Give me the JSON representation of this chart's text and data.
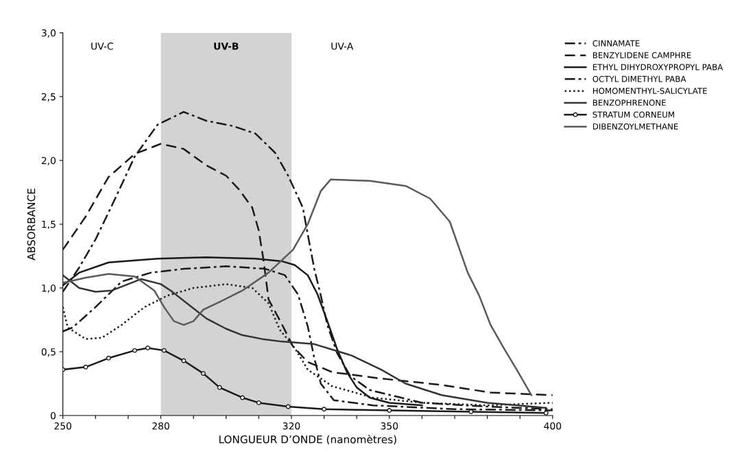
{
  "chart_data": {
    "type": "line",
    "xlabel": "LONGUEUR D’ONDE (nanomètres)",
    "ylabel": "ABSORBANCE",
    "xlim": [
      250,
      400
    ],
    "ylim": [
      0,
      3.0
    ],
    "xticks": [
      250,
      {
        "value": 260,
        "label": null
      },
      {
        "value": 270,
        "label": null
      },
      280,
      {
        "value": 290,
        "label": null
      },
      {
        "value": 300,
        "label": null
      },
      {
        "value": 310,
        "label": null
      },
      320,
      {
        "value": 330,
        "label": null
      },
      {
        "value": 340,
        "label": null
      },
      350,
      {
        "value": 360,
        "label": null
      },
      {
        "value": 370,
        "label": null
      },
      {
        "value": 380,
        "label": null
      },
      {
        "value": 390,
        "label": null
      },
      400
    ],
    "yticks": [
      {
        "value": 0,
        "label": "0"
      },
      {
        "value": 0.5,
        "label": "0,5"
      },
      {
        "value": 1.0,
        "label": "1,0"
      },
      {
        "value": 1.5,
        "label": "1,5"
      },
      {
        "value": 2.0,
        "label": "2,0"
      },
      {
        "value": 2.5,
        "label": "2,5"
      },
      {
        "value": 3.0,
        "label": "3,0"
      }
    ],
    "grid": false,
    "legend": "top right",
    "bands": [
      {
        "axis": "x",
        "from": 280,
        "to": 320,
        "label": "UV-B",
        "color": "#c8c8c8"
      }
    ],
    "annotations": [
      "UV-C",
      "UV-A"
    ],
    "series": [
      {
        "name": "CINNAMATE",
        "color": "#1a1a1a",
        "line_style": "dashdot",
        "x": [
          250,
          255,
          260,
          266,
          272,
          279,
          287,
          294,
          302,
          309,
          315,
          319,
          323.5,
          325,
          327,
          329,
          331,
          334,
          338,
          344,
          360,
          380,
          400
        ],
        "values": [
          0.97,
          1.16,
          1.38,
          1.7,
          2.03,
          2.28,
          2.38,
          2.31,
          2.27,
          2.21,
          2.06,
          1.88,
          1.63,
          1.42,
          1.15,
          0.94,
          0.71,
          0.49,
          0.31,
          0.2,
          0.1,
          0.07,
          0.05
        ]
      },
      {
        "name": "BENZYLIDENE CAMPHRE",
        "color": "#1a1a1a",
        "line_style": "dashed",
        "x": [
          250,
          257,
          264,
          272,
          280,
          287,
          294,
          300,
          304,
          308,
          310,
          311.5,
          313,
          317,
          320.5,
          325,
          332.5,
          347.5,
          366,
          381,
          400
        ],
        "values": [
          1.3,
          1.56,
          1.87,
          2.05,
          2.13,
          2.09,
          1.96,
          1.88,
          1.77,
          1.63,
          1.45,
          1.21,
          0.91,
          0.72,
          0.54,
          0.42,
          0.34,
          0.29,
          0.24,
          0.18,
          0.16
        ]
      },
      {
        "name": "ETHYL DIHYDROXYPROPYL PABA",
        "color": "#1a1a1a",
        "line_style": "solid",
        "x": [
          250,
          255,
          264,
          279,
          294,
          309,
          317,
          321,
          325,
          328,
          331,
          334,
          337,
          340,
          344,
          350,
          360
        ],
        "values": [
          1.02,
          1.12,
          1.2,
          1.23,
          1.24,
          1.23,
          1.21,
          1.18,
          1.1,
          0.95,
          0.74,
          0.52,
          0.34,
          0.22,
          0.14,
          0.1,
          0.08
        ]
      },
      {
        "name": "OCTYL DIMETHYL PABA",
        "color": "#1a1a1a",
        "line_style": "dashdot",
        "x": [
          250,
          253,
          260,
          268,
          277,
          287,
          300,
          312,
          318,
          322,
          325,
          327,
          329,
          333,
          345,
          370,
          400
        ],
        "values": [
          0.66,
          0.69,
          0.85,
          1.05,
          1.12,
          1.15,
          1.17,
          1.15,
          1.1,
          0.95,
          0.7,
          0.45,
          0.25,
          0.12,
          0.08,
          0.05,
          0.04
        ]
      },
      {
        "name": "HOMOMENTHYL-SALICYLATE",
        "color": "#1a1a1a",
        "line_style": "dotted",
        "x": [
          250,
          251.5,
          257,
          262,
          268,
          275,
          282,
          290,
          300,
          308,
          313,
          316.5,
          321,
          325,
          332.5,
          345,
          360,
          380,
          400
        ],
        "values": [
          0.85,
          0.69,
          0.6,
          0.61,
          0.71,
          0.85,
          0.94,
          1.0,
          1.03,
          1.0,
          0.88,
          0.67,
          0.53,
          0.36,
          0.23,
          0.14,
          0.1,
          0.08,
          0.1
        ]
      },
      {
        "name": "BENZOPHRENONE",
        "color": "#333333",
        "line_style": "solid",
        "x": [
          250,
          255,
          260,
          265,
          270,
          274,
          280,
          283,
          290,
          294,
          300,
          305,
          311,
          317,
          327,
          338.5,
          347.5,
          355,
          366,
          380,
          398
        ],
        "values": [
          1.1,
          1.0,
          0.97,
          0.98,
          1.03,
          1.07,
          1.03,
          0.98,
          0.84,
          0.76,
          0.68,
          0.63,
          0.6,
          0.58,
          0.56,
          0.47,
          0.36,
          0.25,
          0.16,
          0.1,
          0.06
        ]
      },
      {
        "name": "STRATUM CORNEUM",
        "color": "#1a1a1a",
        "line_style": "solid",
        "marker": "circle",
        "x": [
          250,
          257,
          264,
          272,
          276,
          281,
          287,
          293,
          298,
          305,
          310,
          319,
          330,
          350,
          375,
          398
        ],
        "values": [
          0.36,
          0.38,
          0.45,
          0.51,
          0.53,
          0.51,
          0.43,
          0.33,
          0.22,
          0.14,
          0.1,
          0.07,
          0.05,
          0.04,
          0.03,
          0.02
        ]
      },
      {
        "name": "DIBENZOYLMETHANE",
        "color": "#5a5a5a",
        "line_style": "solid",
        "x": [
          250,
          257,
          264,
          272,
          278,
          281,
          284,
          287,
          290,
          293,
          298,
          305,
          313,
          320.5,
          325,
          329,
          332,
          344,
          355,
          362.5,
          368.5,
          374,
          377.5,
          381,
          385,
          389,
          393.5
        ],
        "values": [
          1.04,
          1.08,
          1.11,
          1.09,
          0.98,
          0.85,
          0.74,
          0.71,
          0.74,
          0.83,
          0.89,
          0.98,
          1.12,
          1.3,
          1.5,
          1.76,
          1.85,
          1.84,
          1.8,
          1.7,
          1.52,
          1.12,
          0.94,
          0.71,
          0.53,
          0.36,
          0.16
        ]
      }
    ]
  }
}
